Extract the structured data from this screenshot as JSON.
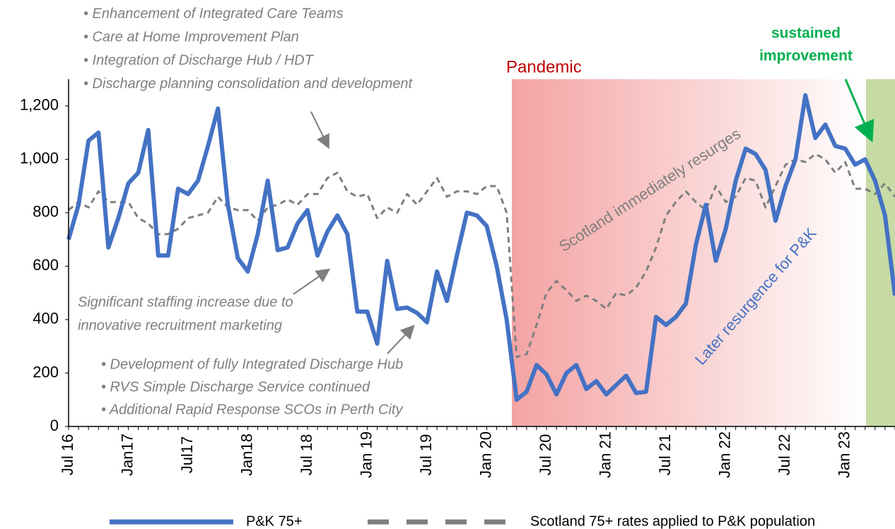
{
  "chart_data": {
    "type": "line",
    "categories": [
      "Jul 16",
      null,
      null,
      null,
      null,
      null,
      "Jan17",
      null,
      null,
      null,
      null,
      null,
      "Jul17",
      null,
      null,
      null,
      null,
      null,
      "Jan18",
      null,
      null,
      null,
      null,
      null,
      "Jul 18",
      null,
      null,
      null,
      null,
      null,
      "Jan 19",
      null,
      null,
      null,
      null,
      null,
      "Jul 19",
      null,
      null,
      null,
      null,
      null,
      "Jan 20",
      null,
      null,
      null,
      null,
      null,
      "Jul 20",
      null,
      null,
      null,
      null,
      null,
      "Jan 21",
      null,
      null,
      null,
      null,
      null,
      "Jul 21",
      null,
      null,
      null,
      null,
      null,
      "Jan 22",
      null,
      null,
      null,
      null,
      null,
      "Jul 22",
      null,
      null,
      null,
      null,
      null,
      "Jan 23",
      null,
      null,
      null,
      null,
      null
    ],
    "series": [
      {
        "name": "P&K 75+",
        "color": "#4472c4",
        "dashed": false,
        "values": [
          700,
          830,
          1070,
          1100,
          670,
          780,
          910,
          950,
          1110,
          640,
          640,
          890,
          870,
          920,
          1050,
          1190,
          830,
          630,
          580,
          720,
          920,
          660,
          670,
          760,
          810,
          640,
          730,
          790,
          720,
          430,
          430,
          310,
          620,
          440,
          445,
          425,
          390,
          580,
          470,
          640,
          800,
          790,
          750,
          600,
          400,
          100,
          130,
          230,
          195,
          120,
          200,
          230,
          140,
          170,
          120,
          155,
          190,
          125,
          130,
          410,
          380,
          410,
          460,
          680,
          830,
          620,
          740,
          920,
          1040,
          1020,
          960,
          770,
          900,
          1000,
          1240,
          1080,
          1130,
          1050,
          1040,
          980,
          1000,
          920,
          790,
          490
        ]
      },
      {
        "name": "Scotland 75+ rates applied to P&K population",
        "color": "#7f7f7f",
        "dashed": true,
        "values": [
          810,
          840,
          820,
          880,
          840,
          840,
          840,
          780,
          760,
          720,
          720,
          740,
          780,
          790,
          800,
          860,
          820,
          810,
          810,
          770,
          820,
          830,
          850,
          830,
          870,
          870,
          930,
          950,
          880,
          860,
          870,
          780,
          820,
          800,
          870,
          830,
          880,
          930,
          860,
          880,
          880,
          870,
          900,
          900,
          800,
          260,
          270,
          380,
          500,
          545,
          510,
          470,
          490,
          470,
          440,
          500,
          490,
          520,
          580,
          670,
          790,
          840,
          880,
          840,
          810,
          900,
          840,
          860,
          930,
          920,
          820,
          900,
          980,
          1000,
          990,
          1020,
          1000,
          950,
          990,
          890,
          890,
          870,
          910,
          860
        ]
      }
    ],
    "ylim": [
      0,
      1300
    ],
    "yticks": [
      0,
      200,
      400,
      600,
      800,
      {
        "value": 1000,
        "label": "1,000"
      },
      {
        "value": 1200,
        "label": "1,200"
      }
    ],
    "grid": false,
    "annotations": {
      "top_bullets": [
        "• Enhancement of Integrated Care Teams",
        "• Care at Home Improvement Plan",
        "• Integration of Discharge Hub / HDT",
        "• Discharge planning consolidation and development"
      ],
      "pandemic": "Pandemic",
      "sustained": [
        "sustained",
        "improvement"
      ],
      "scotland_note": "Scotland immediately resurges",
      "pk_note": "Later resurgence for P&K",
      "staffing": [
        "Significant staffing increase due to",
        "innovative recruitment marketing"
      ],
      "bottom_bullets": [
        "• Development of fully Integrated Discharge Hub",
        "• RVS Simple Discharge Service continued",
        "• Additional Rapid Response SCOs in Perth City"
      ]
    }
  }
}
